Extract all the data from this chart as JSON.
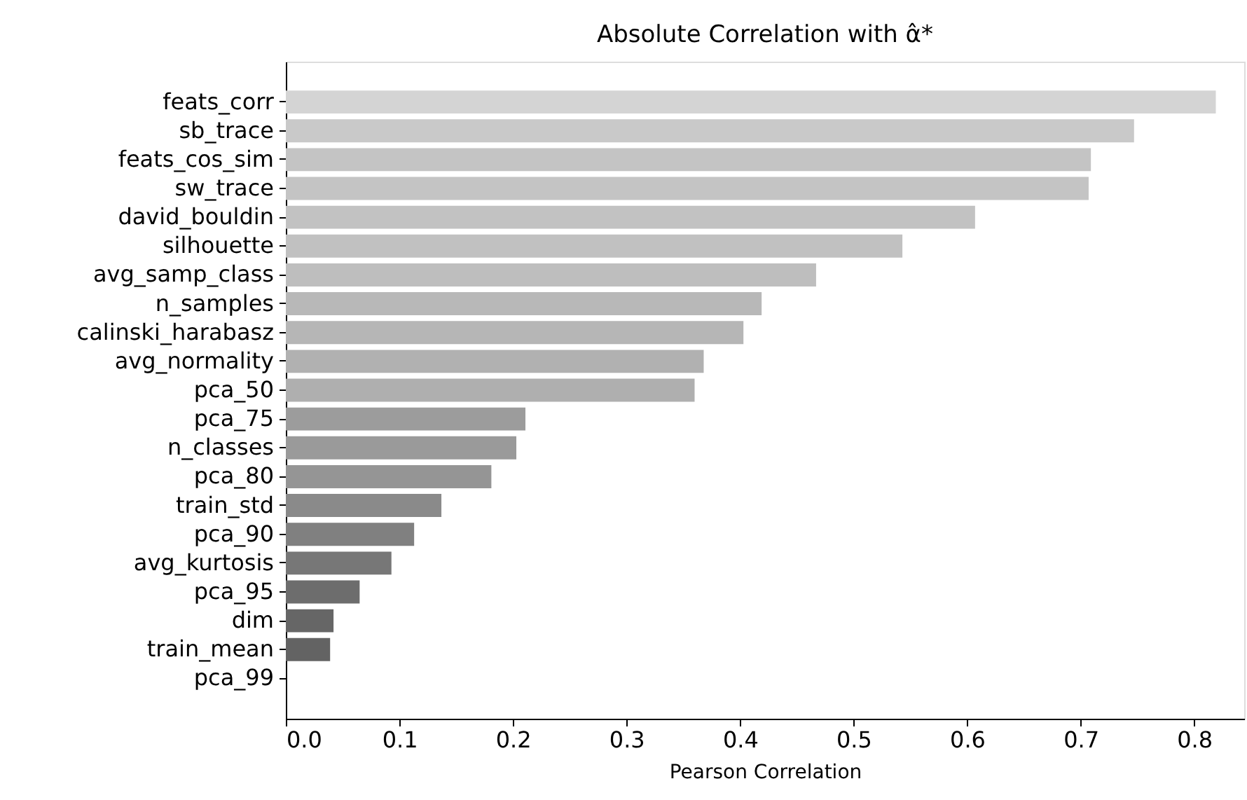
{
  "chart_data": {
    "type": "bar",
    "orientation": "horizontal",
    "title": "Absolute Correlation with α̂*",
    "xlabel": "Pearson Correlation",
    "categories": [
      "feats_corr",
      "sb_trace",
      "feats_cos_sim",
      "sw_trace",
      "david_bouldin",
      "silhouette",
      "avg_samp_class",
      "n_samples",
      "calinski_harabasz",
      "avg_normality",
      "pca_50",
      "pca_75",
      "n_classes",
      "pca_80",
      "train_std",
      "pca_90",
      "avg_kurtosis",
      "pca_95",
      "dim",
      "train_mean",
      "pca_99"
    ],
    "values": [
      0.819,
      0.747,
      0.709,
      0.707,
      0.607,
      0.543,
      0.467,
      0.419,
      0.403,
      0.368,
      0.36,
      0.211,
      0.203,
      0.181,
      0.137,
      0.113,
      0.093,
      0.065,
      0.042,
      0.039,
      0
    ],
    "colors": [
      "#d4d4d4",
      "#c9c9c9",
      "#c4c4c4",
      "#c4c4c4",
      "#c2c2c2",
      "#c1c1c1",
      "#bebebe",
      "#b8b8b8",
      "#b6b6b6",
      "#b1b1b1",
      "#afafaf",
      "#9c9c9c",
      "#9a9a9a",
      "#959595",
      "#8a8a8a",
      "#808080",
      "#777777",
      "#6d6d6d",
      "#666666",
      "#636363",
      "#5c5c5c"
    ],
    "xlim": [
      0,
      0.844
    ],
    "xticks": [
      {
        "value": 0,
        "label": "0.0"
      },
      0.1,
      0.2,
      0.3,
      0.4,
      0.5,
      0.6,
      0.7,
      0.8
    ],
    "grid": false,
    "legend": false
  }
}
